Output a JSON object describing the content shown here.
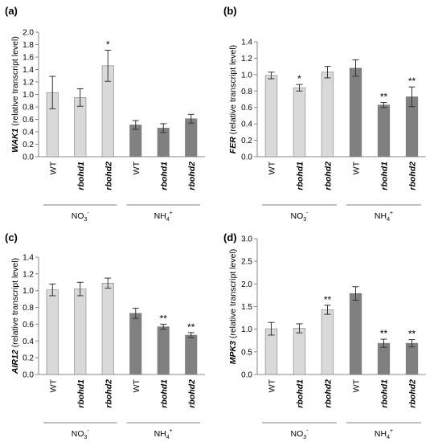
{
  "colors": {
    "nitrate_bar": "#d9d9d9",
    "ammonium_bar": "#808080",
    "axis": "#888888",
    "bar_stroke": "#7f7f7f"
  },
  "chart_data": [
    {
      "type": "bar",
      "panel_label": "(a)",
      "gene": "WAK1",
      "ylabel_suffix": "(relative transcript level)",
      "ylim": [
        0,
        2.0
      ],
      "yticks": [
        "0.0",
        "0.2",
        "0.4",
        "0.6",
        "0.8",
        "1.0",
        "1.2",
        "1.4",
        "1.6",
        "1.8",
        "2.0"
      ],
      "categories": [
        "WT",
        "rbohd1",
        "rbohd2",
        "WT",
        "rbohd1",
        "rbohd2"
      ],
      "groups": [
        {
          "base": "NO",
          "sub": "3",
          "sup": "-"
        },
        {
          "base": "NH",
          "sub": "4",
          "sup": "+"
        }
      ],
      "values": [
        1.03,
        0.95,
        1.46,
        0.51,
        0.46,
        0.61
      ],
      "errors": [
        0.26,
        0.14,
        0.25,
        0.07,
        0.07,
        0.07
      ],
      "annotations": [
        "",
        "",
        "*",
        "",
        "",
        ""
      ]
    },
    {
      "type": "bar",
      "panel_label": "(b)",
      "gene": "FER",
      "ylabel_suffix": "(relative transcript level)",
      "ylim": [
        0,
        1.4
      ],
      "yticks": [
        "0.0",
        "0.2",
        "0.4",
        "0.6",
        "0.8",
        "1.0",
        "1.2",
        "1.4"
      ],
      "categories": [
        "WT",
        "rbohd1",
        "rbohd2",
        "WT",
        "rbohd1",
        "rbohd2"
      ],
      "groups": [
        {
          "base": "NO",
          "sub": "3",
          "sup": "-"
        },
        {
          "base": "NH",
          "sub": "4",
          "sup": "+"
        }
      ],
      "values": [
        0.99,
        0.84,
        1.03,
        1.08,
        0.63,
        0.73
      ],
      "errors": [
        0.04,
        0.04,
        0.07,
        0.1,
        0.03,
        0.12
      ],
      "annotations": [
        "",
        "*",
        "",
        "",
        "**",
        "**"
      ]
    },
    {
      "type": "bar",
      "panel_label": "(c)",
      "gene": "AIR12",
      "ylabel_suffix": "(relative transcript level)",
      "ylim": [
        0,
        1.4
      ],
      "yticks": [
        "0.0",
        "0.2",
        "0.4",
        "0.6",
        "0.8",
        "1.0",
        "1.2",
        "1.4"
      ],
      "categories": [
        "WT",
        "rbohd1",
        "rbohd2",
        "WT",
        "rbohd1",
        "rbohd2"
      ],
      "groups": [
        {
          "base": "NO",
          "sub": "3",
          "sup": "-"
        },
        {
          "base": "NH",
          "sub": "4",
          "sup": "+"
        }
      ],
      "values": [
        1.01,
        1.02,
        1.09,
        0.73,
        0.57,
        0.47
      ],
      "errors": [
        0.07,
        0.08,
        0.06,
        0.06,
        0.03,
        0.03
      ],
      "annotations": [
        "",
        "",
        "",
        "",
        "**",
        "**"
      ]
    },
    {
      "type": "bar",
      "panel_label": "(d)",
      "gene": "MPK3",
      "ylabel_suffix": "(relative transcript level)",
      "ylim": [
        0,
        3.0
      ],
      "yticks": [
        "0.0",
        "0.5",
        "1.0",
        "1.5",
        "2.0",
        "2.5",
        "3.0"
      ],
      "categories": [
        "WT",
        "rbohd1",
        "rbohd2",
        "WT",
        "rbohd1",
        "rbohd2"
      ],
      "groups": [
        {
          "base": "NO",
          "sub": "3",
          "sup": "-"
        },
        {
          "base": "NH",
          "sub": "4",
          "sup": "+"
        }
      ],
      "values": [
        1.01,
        1.02,
        1.43,
        1.79,
        0.69,
        0.69
      ],
      "errors": [
        0.14,
        0.1,
        0.1,
        0.15,
        0.09,
        0.08
      ],
      "annotations": [
        "",
        "",
        "**",
        "",
        "**",
        "**"
      ]
    }
  ]
}
